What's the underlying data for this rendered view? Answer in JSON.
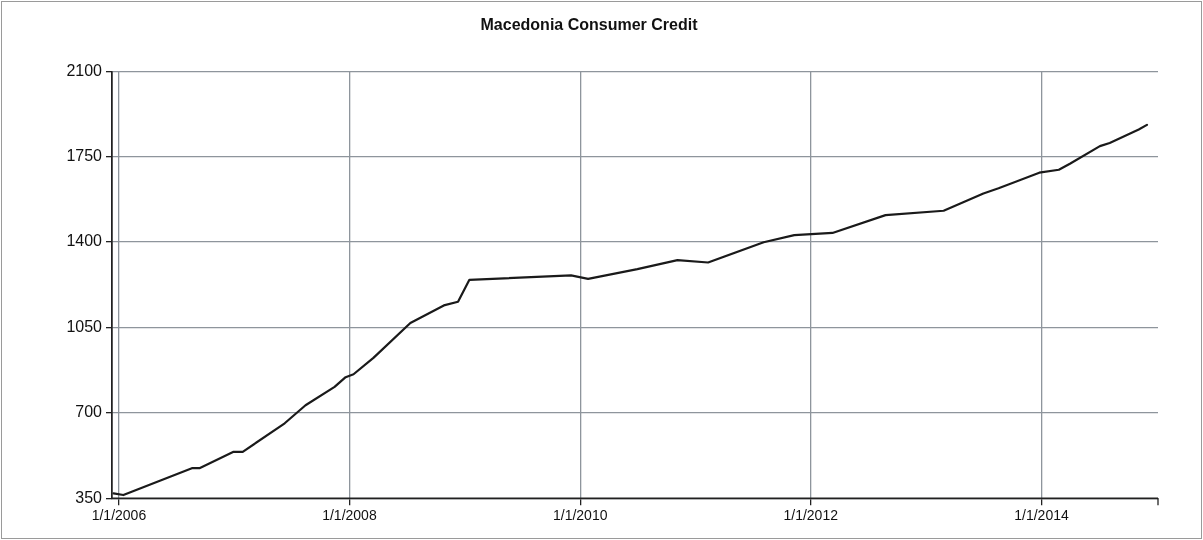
{
  "chart_data": {
    "type": "line",
    "title": "Macedonia Consumer Credit",
    "x": [
      "2005-12-15",
      "2006-01-15",
      "2006-08-20",
      "2006-09-13",
      "2006-12-30",
      "2007-01-28",
      "2007-06-10",
      "2007-08-15",
      "2007-11-15",
      "2007-12-20",
      "2008-01-14",
      "2008-03-17",
      "2008-07-12",
      "2008-10-26",
      "2008-12-10",
      "2009-01-15",
      "2009-12-03",
      "2010-01-26",
      "2010-07-01",
      "2010-11-05",
      "2011-02-10",
      "2011-08-05",
      "2011-11-10",
      "2012-03-10",
      "2012-08-25",
      "2013-02-25",
      "2013-07-01",
      "2013-08-18",
      "2013-12-25",
      "2014-02-25",
      "2014-04-01",
      "2014-07-05",
      "2014-08-05",
      "2014-11-05",
      "2014-12-01"
    ],
    "series": [
      {
        "color": "#1a1a1a",
        "values": [
          370,
          363,
          473,
          473,
          540,
          540,
          657,
          731,
          806,
          846,
          858,
          925,
          1068,
          1140,
          1155,
          1245,
          1263,
          1249,
          1289,
          1326,
          1316,
          1399,
          1428,
          1437,
          1510,
          1528,
          1599,
          1620,
          1684,
          1696,
          1721,
          1793,
          1806,
          1861,
          1880
        ]
      }
    ],
    "xlim": [
      "2005-12-10",
      "2015-01-05"
    ],
    "xticks": [
      {
        "value": "2006-01-01",
        "label": "1/1/2006"
      },
      {
        "value": "2008-01-01",
        "label": "1/1/2008"
      },
      {
        "value": "2010-01-01",
        "label": "1/1/2010"
      },
      {
        "value": "2012-01-01",
        "label": "1/1/2012"
      },
      {
        "value": "2014-01-01",
        "label": "1/1/2014"
      }
    ],
    "ylim": [
      350,
      2100
    ],
    "yticks": [
      350,
      700,
      1050,
      1400,
      1750,
      2100
    ],
    "grid": true,
    "legend": false,
    "marker": "none",
    "line_style": "solid"
  }
}
